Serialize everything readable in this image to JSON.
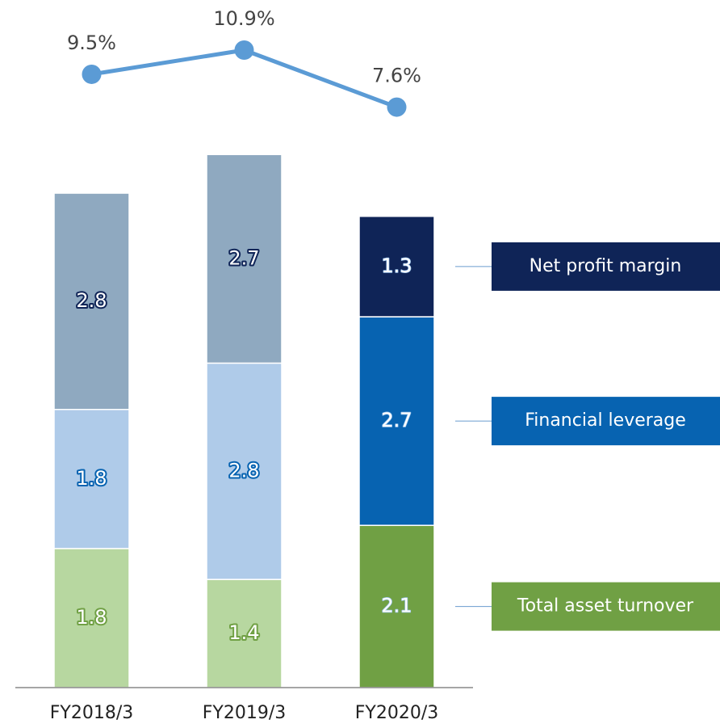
{
  "chart_data": {
    "type": "stacked-bar-line",
    "categories": [
      "FY2018/3",
      "FY2019/3",
      "FY2020/3"
    ],
    "ylim": [
      0,
      8.9
    ],
    "series": [
      {
        "name": "Total asset turnover",
        "color": "#70a044",
        "colors": [
          "#b7d7a0",
          "#b7d7a0",
          "#70a044"
        ],
        "values": [
          1.8,
          1.4,
          2.1
        ]
      },
      {
        "name": "Financial leverage",
        "color": "#0763b1",
        "colors": [
          "#afcbe9",
          "#afcbe9",
          "#0763b1"
        ],
        "values": [
          1.8,
          2.8,
          2.7
        ]
      },
      {
        "name": "Net profit margin",
        "color": "#0f2457",
        "colors": [
          "#8fa9c0",
          "#8fa9c0",
          "#0f2457"
        ],
        "values": [
          2.8,
          2.7,
          1.3
        ]
      }
    ],
    "line": {
      "color": "#5b9bd5",
      "axis": "y2",
      "values": [
        9.5,
        10.9,
        7.6
      ],
      "value_labels": [
        "9.5%",
        "10.9%",
        "7.6%"
      ]
    },
    "y2lim": [
      -26,
      13.8
    ]
  }
}
